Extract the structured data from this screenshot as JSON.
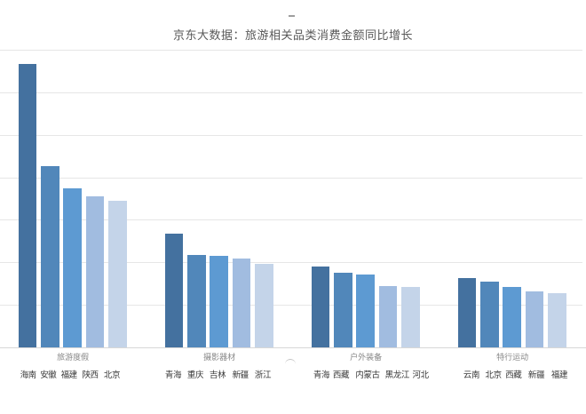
{
  "title": "京东大数据：旅游相关品类消费金额同比增长",
  "chart_data": {
    "type": "bar",
    "title": "京东大数据：旅游相关品类消费金额同比增长",
    "xlabel": "",
    "ylabel": "",
    "ylim": [
      0,
      350
    ],
    "gridline_step": 50,
    "grid": true,
    "legend": false,
    "axis_value_labels_visible": false,
    "groups": [
      {
        "category": "旅游度假",
        "items": [
          {
            "label": "海南",
            "value": 333
          },
          {
            "label": "安徽",
            "value": 213
          },
          {
            "label": "福建",
            "value": 187
          },
          {
            "label": "陕西",
            "value": 178
          },
          {
            "label": "北京",
            "value": 172
          }
        ]
      },
      {
        "category": "摄影器材",
        "items": [
          {
            "label": "青海",
            "value": 134
          },
          {
            "label": "重庆",
            "value": 109
          },
          {
            "label": "吉林",
            "value": 108
          },
          {
            "label": "新疆",
            "value": 104
          },
          {
            "label": "浙江",
            "value": 98
          }
        ]
      },
      {
        "category": "户外装备",
        "items": [
          {
            "label": "青海",
            "value": 95
          },
          {
            "label": "西藏",
            "value": 88
          },
          {
            "label": "内蒙古",
            "value": 86
          },
          {
            "label": "黑龙江",
            "value": 72
          },
          {
            "label": "河北",
            "value": 71
          }
        ]
      },
      {
        "category": "特行运动",
        "items": [
          {
            "label": "云南",
            "value": 81
          },
          {
            "label": "北京",
            "value": 77
          },
          {
            "label": "西藏",
            "value": 71
          },
          {
            "label": "新疆",
            "value": 66
          },
          {
            "label": "福建",
            "value": 64
          }
        ]
      }
    ],
    "series_colors": [
      "#44719f",
      "#5187ba",
      "#5d9ad2",
      "#a1bce0",
      "#c4d4e9"
    ]
  }
}
